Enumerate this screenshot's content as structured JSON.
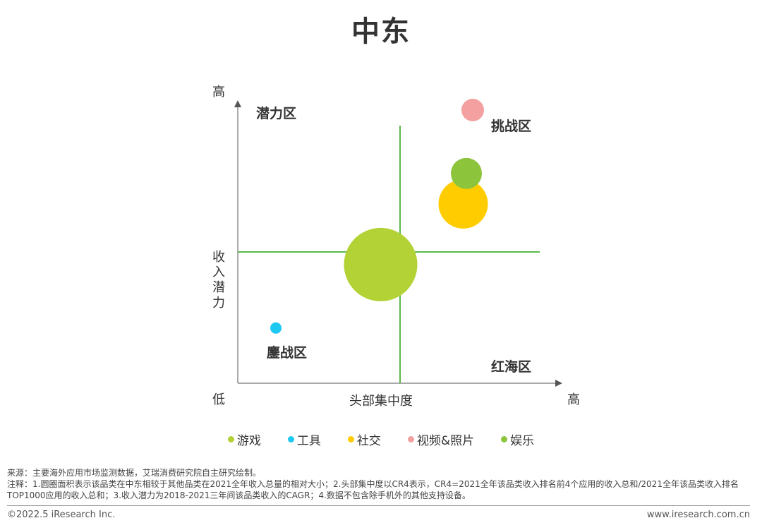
{
  "title": "中东",
  "chart_data": {
    "type": "bubble",
    "xlabel": "头部集中度",
    "ylabel": "收入潜力",
    "axis_low": "低",
    "x_high": "高",
    "y_high": "高",
    "quadrants": {
      "top_left": "潜力区",
      "top_right": "挑战区",
      "bottom_left": "鏖战区",
      "bottom_right": "红海区"
    },
    "series": [
      {
        "name": "游戏",
        "color": "#b2d235",
        "x": 0.45,
        "y": 0.43,
        "r": 52
      },
      {
        "name": "工具",
        "color": "#1ec8f0",
        "x": 0.12,
        "y": 0.2,
        "r": 8
      },
      {
        "name": "社交",
        "color": "#ffcc00",
        "x": 0.71,
        "y": 0.65,
        "r": 35
      },
      {
        "name": "视频&照片",
        "color": "#f4a0a0",
        "x": 0.74,
        "y": 0.99,
        "r": 16
      },
      {
        "name": "娱乐",
        "color": "#8cc43c",
        "x": 0.72,
        "y": 0.76,
        "r": 22
      }
    ]
  },
  "legend": [
    "游戏",
    "工具",
    "社交",
    "视频&照片",
    "娱乐"
  ],
  "legend_colors": [
    "#b2d235",
    "#1ec8f0",
    "#ffcc00",
    "#f4a0a0",
    "#8cc43c"
  ],
  "notes": {
    "source": "来源：主要海外应用市场监测数据，艾瑞消费研究院自主研究绘制。",
    "note": "注释：1.圆圈面积表示该品类在中东相较于其他品类在2021全年收入总量的相对大小；2.头部集中度以CR4表示，CR4=2021全年该品类收入排名前4个应用的收入总和/2021全年该品类收入排名TOP1000应用的收入总和；3.收入潜力为2018-2021三年间该品类收入的CAGR；4.数据不包含除手机外的其他支持设备。"
  },
  "footer": {
    "copyright": "©2022.5 iResearch Inc.",
    "website": "www.iresearch.com.cn"
  }
}
